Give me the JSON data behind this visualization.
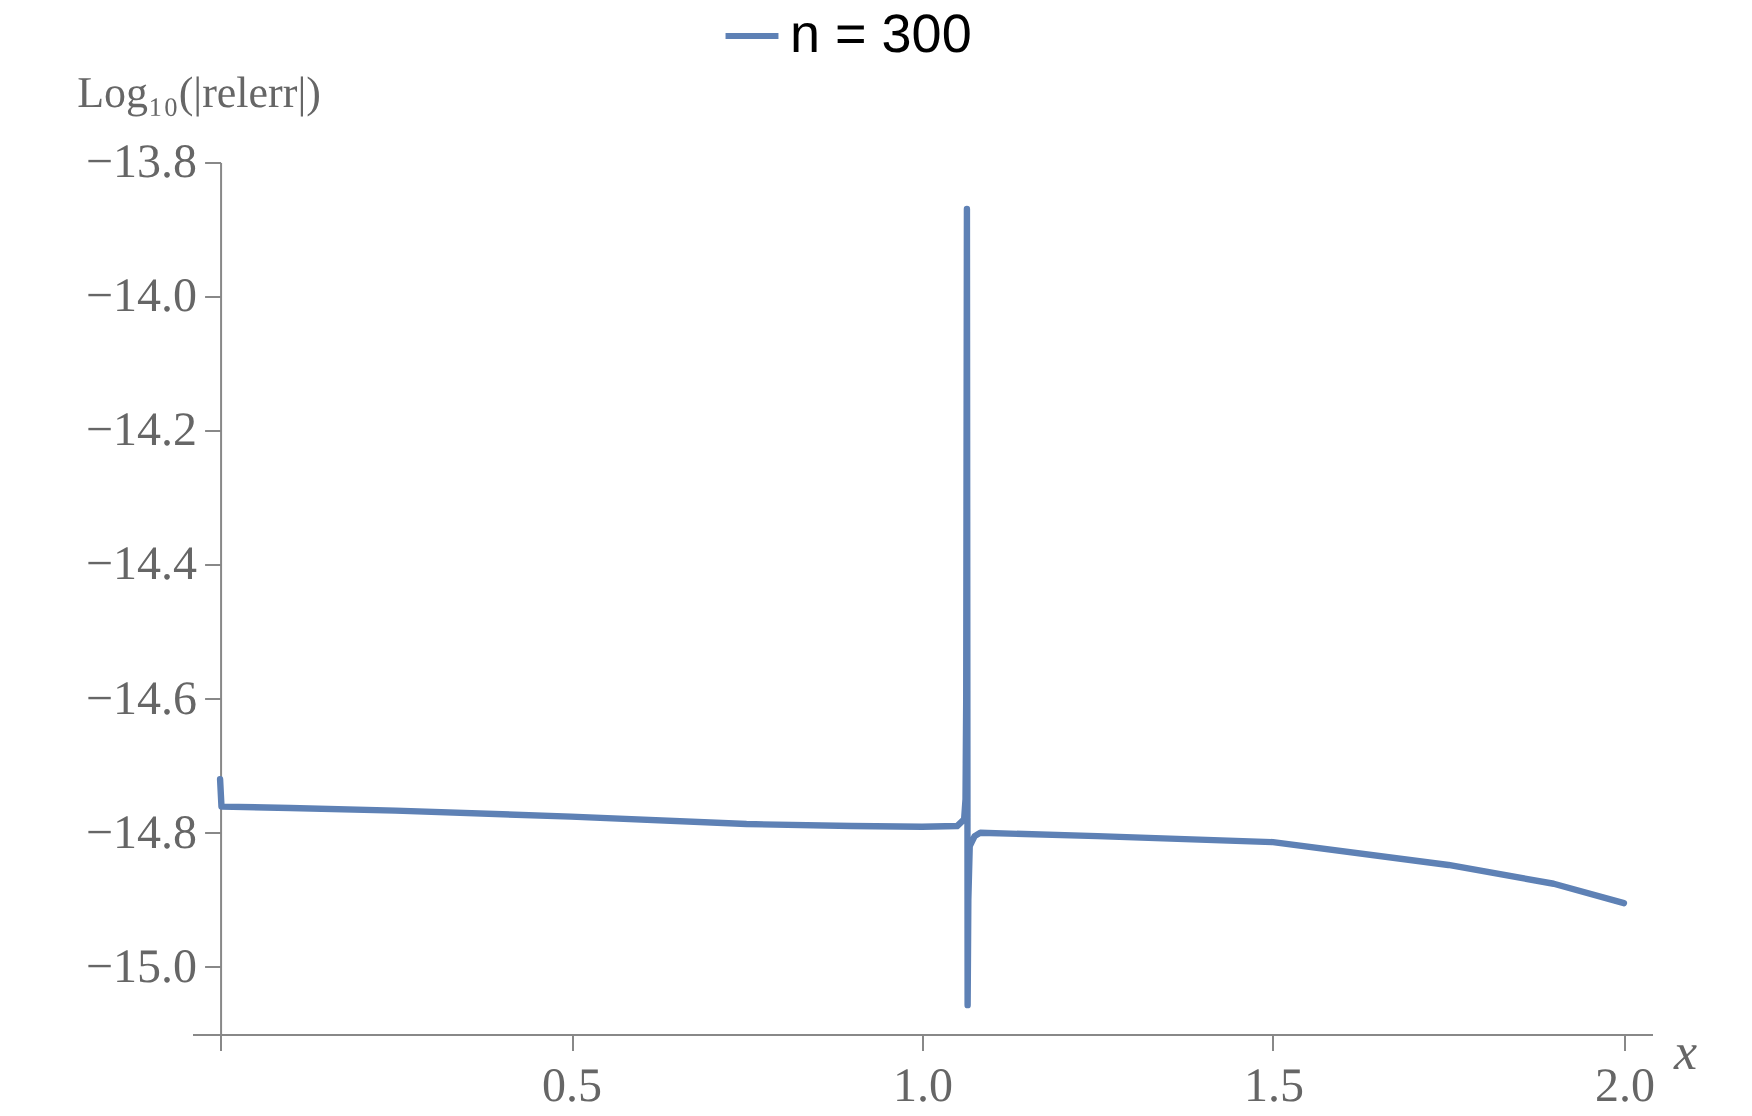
{
  "chart_data": {
    "type": "line",
    "xlabel": "x",
    "ylabel": "Log₁₀(|relerr|)",
    "legend": "top",
    "grid": false,
    "line_style": "solid",
    "marker": "none",
    "xlim": [
      -0.04,
      2.04
    ],
    "ylim": [
      -15.1,
      -13.8
    ],
    "xticks": [
      {
        "value": 0,
        "label": null
      },
      {
        "value": 0.5,
        "label": "0.5"
      },
      {
        "value": 1,
        "label": "1.0"
      },
      {
        "value": 1.5,
        "label": "1.5"
      },
      {
        "value": 2,
        "label": "2.0"
      }
    ],
    "yticks": [
      {
        "value": -13.8,
        "label": "−13.8"
      },
      {
        "value": -14,
        "label": "−14.0"
      },
      {
        "value": -14.2,
        "label": "−14.2"
      },
      {
        "value": -14.4,
        "label": "−14.4"
      },
      {
        "value": -14.6,
        "label": "−14.6"
      },
      {
        "value": -14.8,
        "label": "−14.8"
      },
      {
        "value": -15,
        "label": "−15.0"
      }
    ],
    "x": [
      0,
      0.002,
      0.1,
      0.25,
      0.5,
      0.75,
      0.9,
      1.0,
      1.05,
      1.06,
      1.062,
      1.063,
      1.064,
      1.065,
      1.066,
      1.068,
      1.075,
      1.083,
      1.25,
      1.5,
      1.75,
      1.9,
      2.0
    ],
    "series": [
      {
        "name": "n = 300",
        "color": "#5e81b5",
        "values": [
          -14.72,
          -14.761,
          -14.763,
          -14.767,
          -14.776,
          -14.787,
          -14.79,
          -14.791,
          -14.79,
          -14.78,
          -14.75,
          -14.6,
          -13.87,
          -15.057,
          -14.9,
          -14.82,
          -14.805,
          -14.8,
          -14.805,
          -14.814,
          -14.848,
          -14.876,
          -14.905
        ]
      }
    ]
  }
}
